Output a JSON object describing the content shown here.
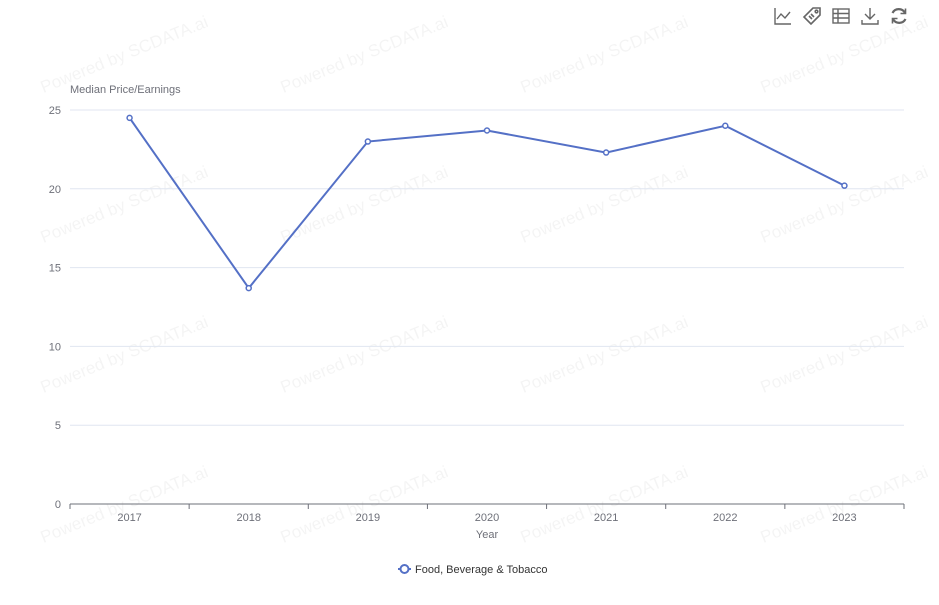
{
  "watermark": "Powered by SCDATA.ai",
  "toolbar": {
    "icons": [
      "line-chart-icon",
      "tag-icon",
      "data-table-icon",
      "download-icon",
      "refresh-icon"
    ]
  },
  "colors": {
    "series": "#5470c6",
    "grid": "#e0e6f1",
    "axis": "#6e7079"
  },
  "chart_data": {
    "type": "line",
    "title": "",
    "xlabel": "Year",
    "ylabel": "Median Price/Earnings",
    "categories": [
      "2017",
      "2018",
      "2019",
      "2020",
      "2021",
      "2022",
      "2023"
    ],
    "series": [
      {
        "name": "Food, Beverage & Tobacco",
        "values": [
          24.5,
          13.7,
          23.0,
          23.7,
          22.3,
          24.0,
          20.2
        ]
      }
    ],
    "ylim": [
      0,
      25
    ],
    "yticks": [
      0,
      5,
      10,
      15,
      20,
      25
    ],
    "grid": true,
    "legend": "bottom-center"
  }
}
